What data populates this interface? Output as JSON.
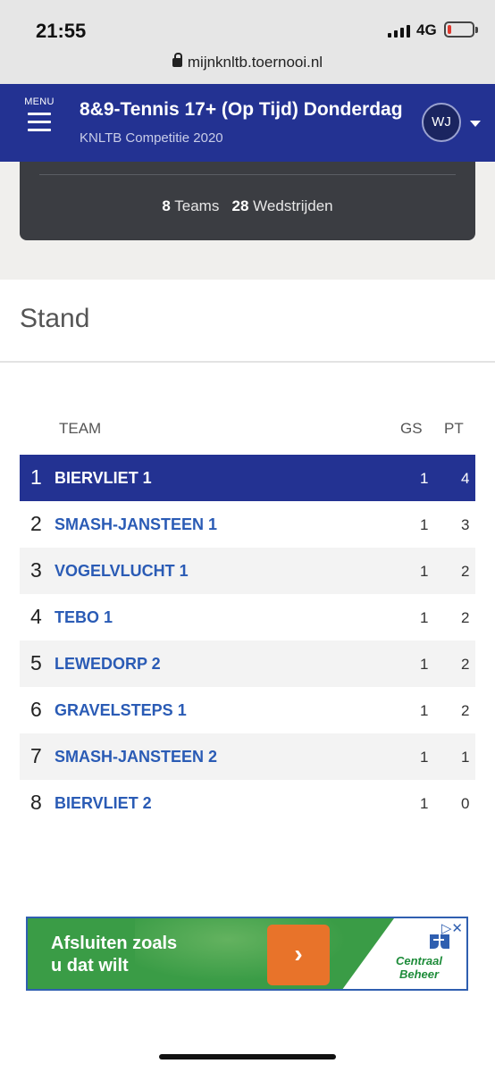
{
  "status_bar": {
    "time": "21:55",
    "network": "4G",
    "battery_level": 0.15
  },
  "browser": {
    "url": "mijnknltb.toernooi.nl"
  },
  "header": {
    "menu_label": "MENU",
    "title": "8&9-Tennis 17+ (Op Tijd) Donderdag",
    "subtitle": "KNLTB Competitie 2020",
    "avatar_initials": "WJ",
    "color": "#233292"
  },
  "summary": {
    "teams_count": "8",
    "teams_label": "Teams",
    "matches_count": "28",
    "matches_label": "Wedstrijden"
  },
  "standings": {
    "title": "Stand",
    "columns": {
      "team": "TEAM",
      "gs": "GS",
      "pt": "PT"
    },
    "rows": [
      {
        "rank": "1",
        "team": "BIERVLIET 1",
        "gs": "1",
        "pt": "4"
      },
      {
        "rank": "2",
        "team": "SMASH-JANSTEEN 1",
        "gs": "1",
        "pt": "3"
      },
      {
        "rank": "3",
        "team": "VOGELVLUCHT 1",
        "gs": "1",
        "pt": "2"
      },
      {
        "rank": "4",
        "team": "TEBO 1",
        "gs": "1",
        "pt": "2"
      },
      {
        "rank": "5",
        "team": "LEWEDORP 2",
        "gs": "1",
        "pt": "2"
      },
      {
        "rank": "6",
        "team": "GRAVELSTEPS 1",
        "gs": "1",
        "pt": "2"
      },
      {
        "rank": "7",
        "team": "SMASH-JANSTEEN 2",
        "gs": "1",
        "pt": "1"
      },
      {
        "rank": "8",
        "team": "BIERVLIET 2",
        "gs": "1",
        "pt": "0"
      }
    ]
  },
  "ad": {
    "line1": "Afsluiten zoals",
    "line2": "u dat wilt",
    "button_icon": "chevron-right-icon",
    "brand_line1": "Centraal",
    "brand_line2": "Beheer"
  }
}
